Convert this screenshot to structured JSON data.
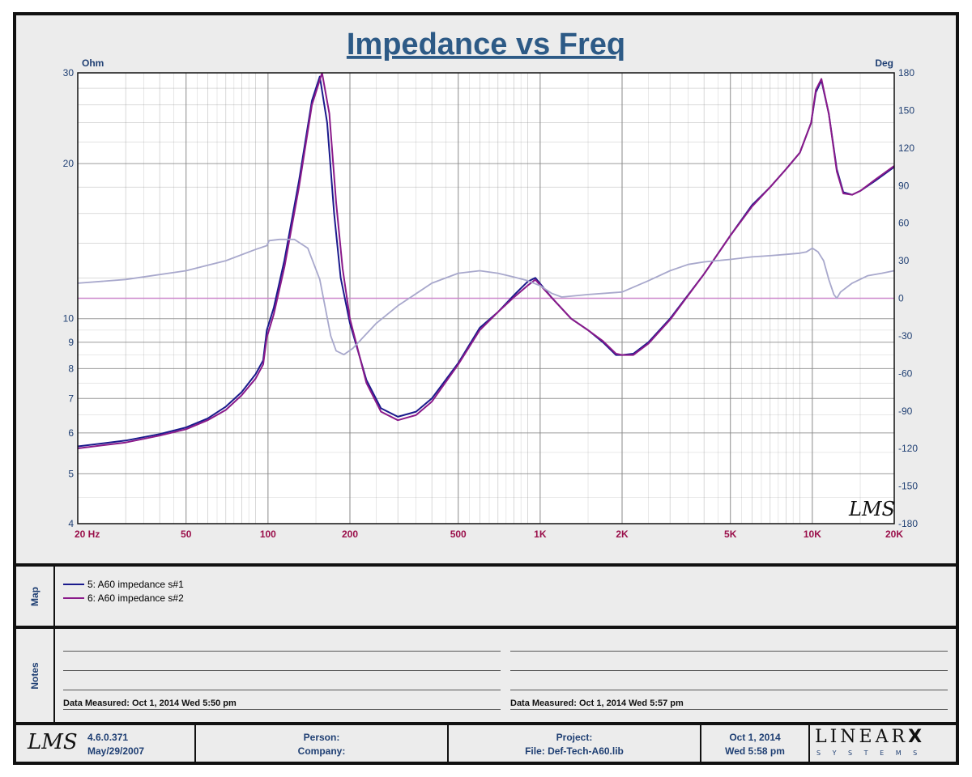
{
  "chart_data": {
    "type": "line",
    "title": "Impedance vs Freq",
    "x_axis": {
      "scale": "log",
      "range": [
        20,
        20000
      ],
      "ticks": [
        {
          "value": 20,
          "label": "20  Hz"
        },
        {
          "value": 50,
          "label": "50"
        },
        {
          "value": 100,
          "label": "100"
        },
        {
          "value": 200,
          "label": "200"
        },
        {
          "value": 500,
          "label": "500"
        },
        {
          "value": 1000,
          "label": "1K"
        },
        {
          "value": 2000,
          "label": "2K"
        },
        {
          "value": 5000,
          "label": "5K"
        },
        {
          "value": 10000,
          "label": "10K"
        },
        {
          "value": 20000,
          "label": "20K"
        }
      ]
    },
    "y_axis_left": {
      "label": "Ohm",
      "scale": "log",
      "range": [
        4,
        30
      ],
      "ticks": [
        {
          "value": 4,
          "label": "4"
        },
        {
          "value": 5,
          "label": "5"
        },
        {
          "value": 6,
          "label": "6"
        },
        {
          "value": 7,
          "label": "7"
        },
        {
          "value": 8,
          "label": "8"
        },
        {
          "value": 9,
          "label": "9"
        },
        {
          "value": 10,
          "label": "10"
        },
        {
          "value": 20,
          "label": "20"
        },
        {
          "value": 30,
          "label": "30"
        }
      ]
    },
    "y_axis_right": {
      "label": "Deg",
      "scale": "linear",
      "range": [
        -180,
        180
      ],
      "ticks": [
        180,
        150,
        120,
        90,
        60,
        30,
        0,
        -30,
        -60,
        -90,
        -120,
        -150,
        -180
      ]
    },
    "grid": true,
    "series": [
      {
        "name": "5: A60 impedance s#1",
        "axis": "left",
        "color": "#1a1a8c",
        "x": [
          20,
          30,
          40,
          50,
          60,
          70,
          80,
          90,
          96,
          99,
          105,
          115,
          130,
          145,
          155,
          165,
          175,
          185,
          200,
          230,
          260,
          300,
          350,
          400,
          500,
          600,
          700,
          800,
          900,
          960,
          1100,
          1300,
          1500,
          1700,
          1900,
          2000,
          2200,
          2500,
          3000,
          4000,
          5000,
          6000,
          7000,
          8000,
          9000,
          9900,
          10300,
          10800,
          11500,
          12300,
          13000,
          14000,
          15000,
          17000,
          20000
        ],
        "y": [
          5.65,
          5.8,
          5.97,
          6.15,
          6.4,
          6.75,
          7.2,
          7.8,
          8.3,
          9.5,
          10.5,
          13.0,
          18.5,
          26.5,
          29.5,
          24.0,
          16.0,
          12.0,
          9.8,
          7.6,
          6.7,
          6.45,
          6.6,
          7.0,
          8.2,
          9.6,
          10.3,
          11.1,
          11.8,
          12.0,
          11.0,
          10.0,
          9.5,
          9.0,
          8.5,
          8.5,
          8.55,
          9.0,
          10.0,
          12.2,
          14.5,
          16.6,
          18.0,
          19.5,
          21.0,
          24.0,
          27.5,
          29.0,
          25.0,
          19.5,
          17.6,
          17.4,
          17.7,
          18.5,
          19.7
        ]
      },
      {
        "name": "6: A60 impedance s#2",
        "axis": "left",
        "color": "#8a1a8a",
        "x": [
          20,
          30,
          40,
          50,
          60,
          70,
          80,
          90,
          96,
          99,
          105,
          115,
          130,
          145,
          158,
          168,
          178,
          188,
          200,
          230,
          260,
          300,
          350,
          400,
          500,
          600,
          700,
          800,
          900,
          960,
          1100,
          1300,
          1500,
          1700,
          1900,
          2000,
          2200,
          2500,
          3000,
          4000,
          5000,
          6000,
          7000,
          8000,
          9000,
          9900,
          10300,
          10800,
          11500,
          12300,
          13000,
          14000,
          15000,
          17000,
          20000
        ],
        "y": [
          5.6,
          5.75,
          5.93,
          6.1,
          6.35,
          6.65,
          7.1,
          7.65,
          8.15,
          9.2,
          10.2,
          12.6,
          18.0,
          26.0,
          30.0,
          25.0,
          16.8,
          12.5,
          10.0,
          7.5,
          6.6,
          6.35,
          6.5,
          6.9,
          8.15,
          9.5,
          10.3,
          11.0,
          11.6,
          11.9,
          11.0,
          10.0,
          9.5,
          9.05,
          8.55,
          8.5,
          8.5,
          8.95,
          9.95,
          12.2,
          14.5,
          16.5,
          18.0,
          19.5,
          21.0,
          24.0,
          27.8,
          29.2,
          25.0,
          19.3,
          17.5,
          17.4,
          17.7,
          18.6,
          19.8
        ]
      },
      {
        "name": "",
        "axis": "right",
        "color": "#a8a8cc",
        "x": [
          20,
          30,
          50,
          70,
          90,
          99,
          101,
          110,
          125,
          140,
          155,
          170,
          178,
          190,
          205,
          250,
          300,
          400,
          500,
          600,
          700,
          800,
          900,
          1000,
          1100,
          1200,
          1500,
          2000,
          2500,
          3000,
          3500,
          4000,
          5000,
          6000,
          7000,
          8000,
          9000,
          9500,
          10000,
          10500,
          11000,
          11500,
          12000,
          12300,
          12700,
          14000,
          16000,
          18000,
          20000
        ],
        "y": [
          12,
          15,
          22,
          30,
          39,
          42,
          46,
          47,
          47,
          40,
          15,
          -30,
          -42,
          -45,
          -40,
          -20,
          -6,
          12,
          20,
          22,
          20,
          17,
          14,
          10,
          4,
          1,
          3,
          5,
          14,
          22,
          27,
          29,
          31,
          33,
          34,
          35,
          36,
          37,
          40,
          37,
          30,
          15,
          3,
          0,
          5,
          12,
          18,
          20,
          22
        ]
      }
    ]
  },
  "watermark": "LMS",
  "map": {
    "label": "Map",
    "items": [
      {
        "label": "5: A60 impedance s#1",
        "color": "#1a1a8c"
      },
      {
        "label": "6: A60 impedance s#2",
        "color": "#8a1a8a"
      }
    ]
  },
  "notes": {
    "label": "Notes",
    "left": "Data Measured: Oct  1, 2014  Wed  5:50 pm",
    "right": "Data Measured: Oct  1, 2014  Wed  5:57 pm"
  },
  "footer": {
    "logo": "LMS",
    "version": "4.6.0.371",
    "version_date": "May/29/2007",
    "person": "Person:",
    "company": "Company:",
    "project": "Project:",
    "file": "File: Def-Tech-A60.lib",
    "date": "Oct  1, 2014",
    "time": "Wed  5:58 pm",
    "brand": "LINEAR",
    "brand_x": "X",
    "brand_sub": "S Y S T E M S"
  },
  "colors": {
    "title": "#2d5a86",
    "axis_left": "#1f3f73",
    "axis_x": "#9a0f4a",
    "zero_line": "#cc88cc",
    "grid": "#8a8a8a"
  }
}
